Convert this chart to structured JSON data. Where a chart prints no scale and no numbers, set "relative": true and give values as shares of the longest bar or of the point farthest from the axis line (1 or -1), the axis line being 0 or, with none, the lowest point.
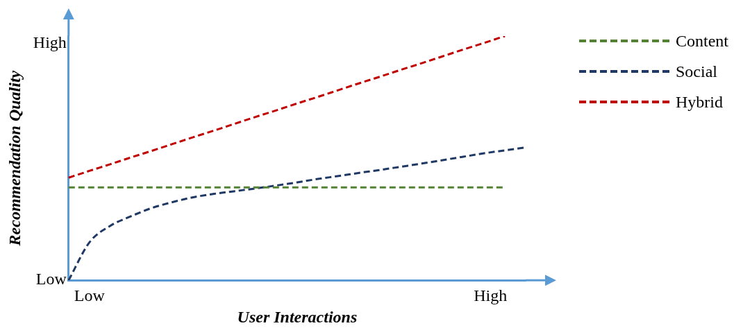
{
  "chart_data": {
    "type": "line",
    "xlabel": "User Interactions",
    "ylabel": "Recommendation Quality",
    "relative": true,
    "categories": [
      null,
      null,
      null,
      null,
      null,
      null,
      null,
      null,
      null,
      null,
      null,
      null,
      null,
      null,
      null,
      null,
      null,
      null,
      null,
      null,
      null,
      null,
      null
    ],
    "annotations": [
      "Low",
      "High",
      "Low",
      "High"
    ],
    "grid": false,
    "legend": "right",
    "marker": "none",
    "line_style": "dashed",
    "series": [
      {
        "name": "Content",
        "color": "#548235",
        "values": [
          0.38,
          0.38,
          0.38,
          0.38,
          0.38,
          0.38,
          0.38,
          0.38,
          0.38,
          0.38,
          0.38,
          0.38,
          0.38,
          0.38,
          0.38,
          0.38,
          0.38,
          0.38,
          0.38,
          0.38,
          0.38,
          0.38,
          null
        ]
      },
      {
        "name": "Social",
        "color": "#1f3864",
        "values": [
          0,
          0.155,
          0.223,
          0.262,
          0.296,
          0.32,
          0.34,
          0.354,
          0.365,
          0.376,
          0.388,
          0.401,
          0.415,
          0.427,
          0.44,
          0.452,
          0.465,
          0.478,
          0.492,
          0.506,
          0.52,
          0.532,
          0.544
        ]
      },
      {
        "name": "Hybrid",
        "color": "#c00000",
        "values": [
          0.42,
          0.448,
          0.475,
          0.503,
          0.53,
          0.558,
          0.586,
          0.613,
          0.641,
          0.669,
          0.696,
          0.724,
          0.751,
          0.779,
          0.807,
          0.834,
          0.862,
          0.889,
          0.917,
          0.945,
          0.972,
          1,
          null
        ]
      }
    ]
  }
}
